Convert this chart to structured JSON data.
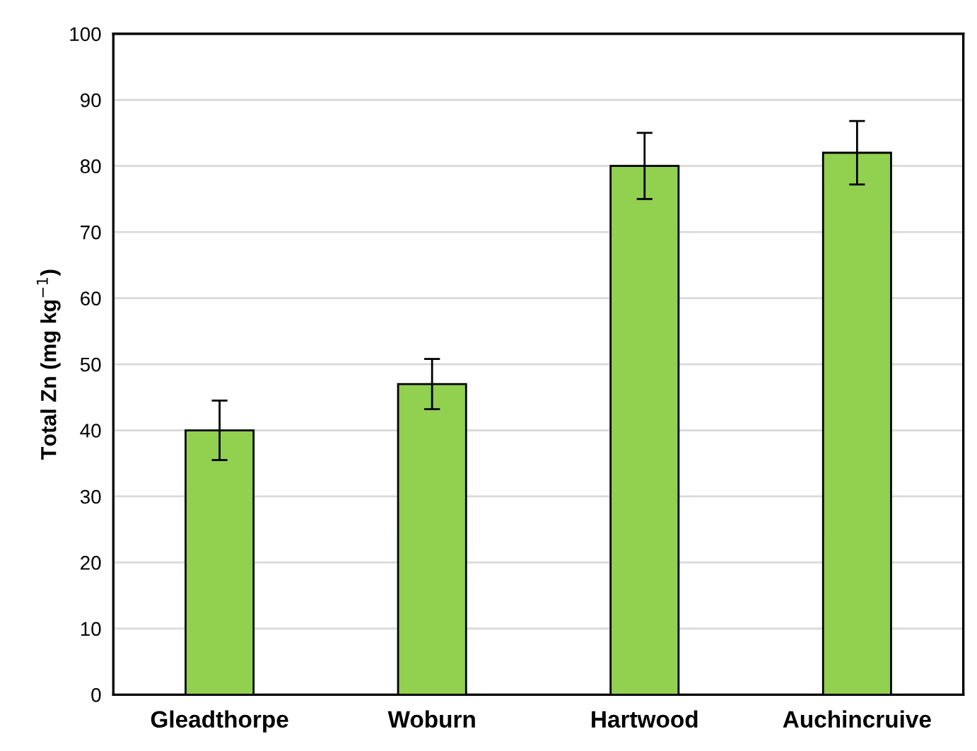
{
  "chart_data": {
    "type": "bar",
    "ylabel": "Total Zn (mg kg$^{−1}$)",
    "categories": [
      "Gleadthorpe",
      "Woburn",
      "Hartwood",
      "Auchincruive"
    ],
    "values": [
      40,
      47,
      80,
      82
    ],
    "errors": [
      4.5,
      3.8,
      5,
      4.8
    ],
    "color": "#92d050",
    "ylim": [
      0,
      100
    ],
    "yticks": [
      0,
      10,
      20,
      30,
      40,
      50,
      60,
      70,
      80,
      90,
      100
    ],
    "grid": "y"
  }
}
